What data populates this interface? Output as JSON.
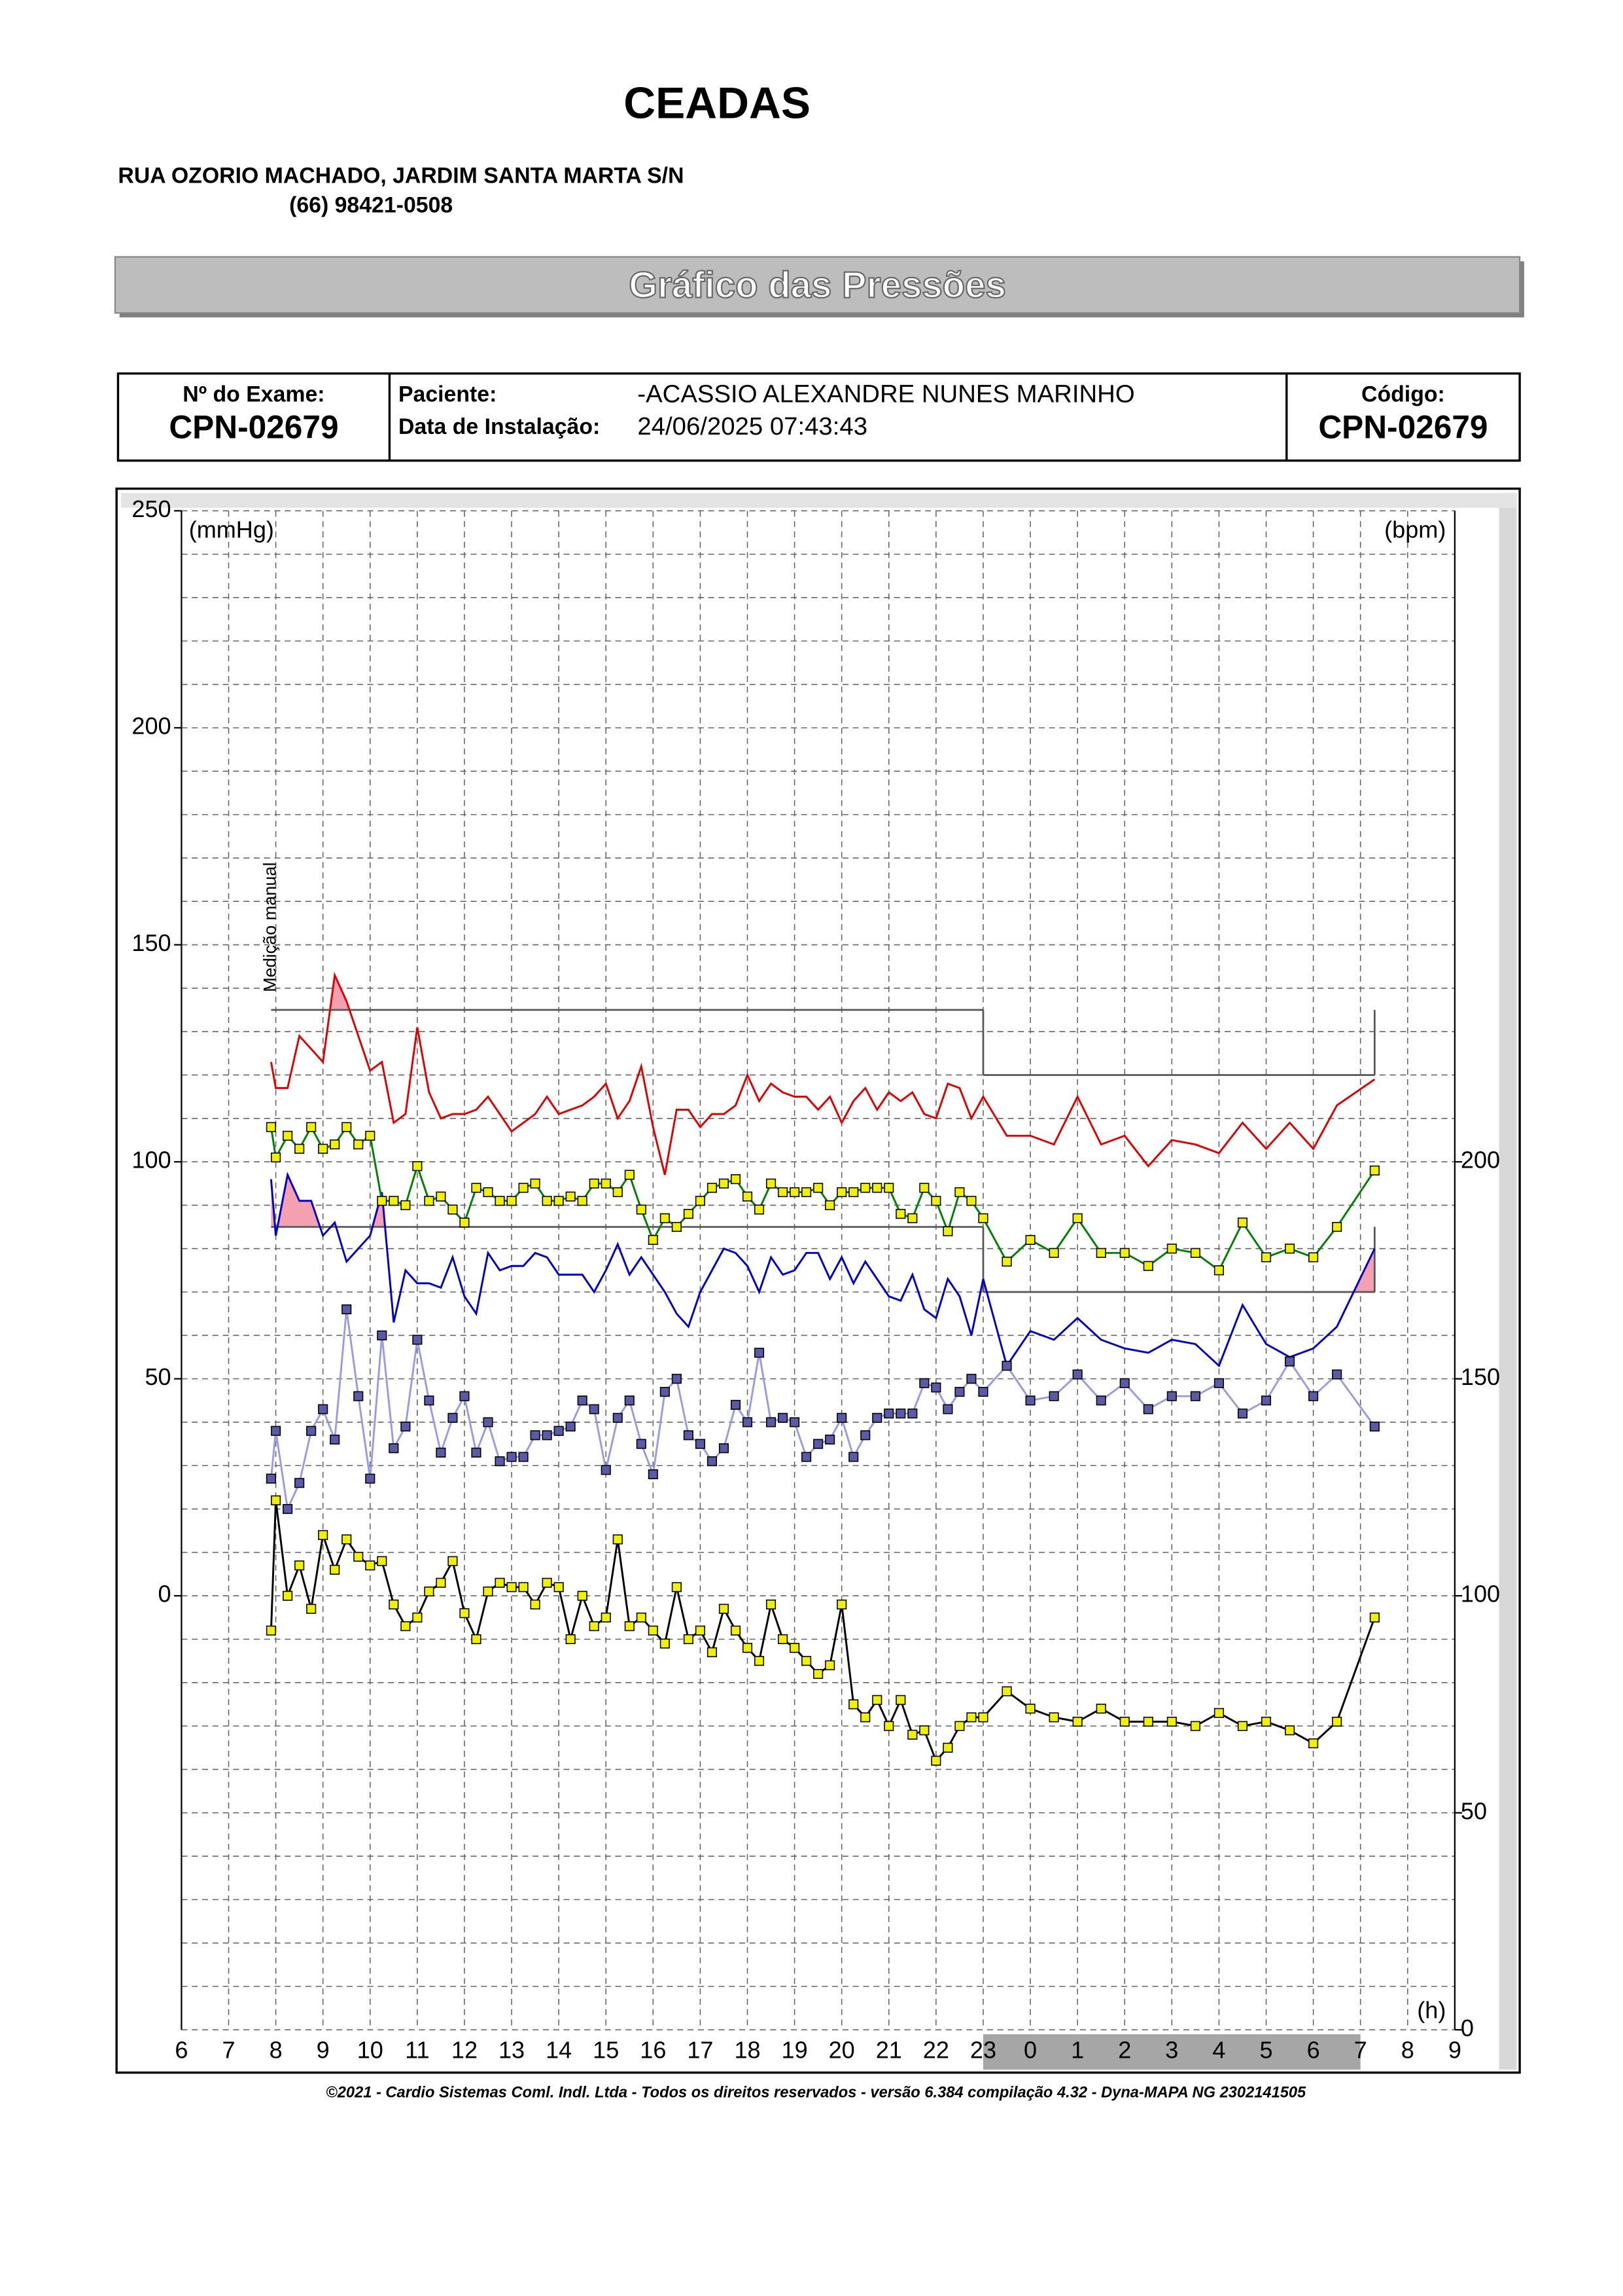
{
  "header": {
    "title": "CEADAS",
    "address": "RUA OZORIO MACHADO, JARDIM SANTA MARTA S/N",
    "phone": "(66) 98421-0508"
  },
  "banner": "Gráfico das Pressões",
  "exam": {
    "exam_label": "Nº do Exame:",
    "exam_number": "CPN-02679",
    "patient_label": "Paciente:",
    "patient_name": "-ACASSIO ALEXANDRE NUNES  MARINHO",
    "install_label": "Data de Instalação:",
    "install_date": "24/06/2025 07:43:43",
    "code_label": "Código:",
    "code": "CPN-02679"
  },
  "chart_data": {
    "type": "line",
    "y_label": "(mmHg)",
    "y2_label": "(bpm)",
    "x_label": "(h)",
    "annotation": {
      "x": 7.9,
      "text": "Medição manual"
    },
    "xlim": [
      6,
      33
    ],
    "xticks": [
      6,
      7,
      8,
      9,
      10,
      11,
      12,
      13,
      14,
      15,
      16,
      17,
      18,
      19,
      20,
      21,
      22,
      23,
      {
        "value": 24,
        "label": "0"
      },
      {
        "value": 25,
        "label": "1"
      },
      {
        "value": 26,
        "label": "2"
      },
      {
        "value": 27,
        "label": "3"
      },
      {
        "value": 28,
        "label": "4"
      },
      {
        "value": 29,
        "label": "5"
      },
      {
        "value": 30,
        "label": "6"
      },
      {
        "value": 31,
        "label": "7"
      },
      {
        "value": 32,
        "label": "8"
      },
      {
        "value": 33,
        "label": "9"
      }
    ],
    "ylim": [
      -100,
      250
    ],
    "yticks": [
      0,
      50,
      100,
      150,
      200,
      250
    ],
    "y2lim": [
      0,
      350
    ],
    "y2ticks": [
      0,
      50,
      100,
      150,
      200
    ],
    "grid": true,
    "ygrid_step": 10,
    "night_band": [
      23,
      31
    ],
    "limits": [
      {
        "start": 7.9,
        "end": 23,
        "systolic": 135,
        "diastolic": 85
      },
      {
        "start": 23,
        "end": 31.3,
        "systolic": 120,
        "diastolic": 70
      }
    ],
    "excess_color": "#f4a0b0",
    "x": [
      7.9,
      8,
      8.25,
      8.5,
      8.75,
      9,
      9.25,
      9.5,
      9.75,
      10,
      10.25,
      10.5,
      10.75,
      11,
      11.25,
      11.5,
      11.75,
      12,
      12.25,
      12.5,
      12.75,
      13,
      13.25,
      13.5,
      13.75,
      14,
      14.25,
      14.5,
      14.75,
      15,
      15.25,
      15.5,
      15.75,
      16,
      16.25,
      16.5,
      16.75,
      17,
      17.25,
      17.5,
      17.75,
      18,
      18.25,
      18.5,
      18.75,
      19,
      19.25,
      19.5,
      19.75,
      20,
      20.25,
      20.5,
      20.75,
      21,
      21.25,
      21.5,
      21.75,
      22,
      22.25,
      22.5,
      22.75,
      23,
      23.5,
      24,
      24.5,
      25,
      25.5,
      26,
      26.5,
      27,
      27.5,
      28,
      28.5,
      29,
      29.5,
      30,
      30.5,
      31.3
    ],
    "series": [
      {
        "color": "#e00000",
        "values": [
          123,
          117,
          117,
          129,
          126,
          123,
          143,
          137,
          129,
          121,
          123,
          109,
          111,
          131,
          116,
          110,
          111,
          111,
          112,
          115,
          111,
          107,
          109,
          111,
          115,
          111,
          112,
          113,
          115,
          118,
          110,
          114,
          122,
          108,
          97,
          112,
          112,
          108,
          111,
          111,
          113,
          120,
          114,
          118,
          116,
          115,
          115,
          112,
          115,
          109,
          114,
          117,
          112,
          116,
          114,
          116,
          111,
          110,
          118,
          117,
          110,
          115,
          106,
          106,
          104,
          115,
          104,
          106,
          99,
          105,
          104,
          102,
          109,
          103,
          109,
          103,
          113,
          119
        ]
      },
      {
        "color": "#0000cc",
        "values": [
          96,
          83,
          97,
          91,
          91,
          83,
          86,
          77,
          80,
          83,
          93,
          63,
          75,
          72,
          72,
          71,
          78,
          69,
          65,
          79,
          75,
          76,
          76,
          79,
          78,
          74,
          74,
          74,
          70,
          75,
          81,
          74,
          78,
          74,
          70,
          65,
          62,
          70,
          75,
          80,
          79,
          76,
          70,
          78,
          74,
          75,
          79,
          79,
          73,
          78,
          72,
          77,
          73,
          69,
          68,
          74,
          66,
          64,
          73,
          69,
          60,
          73,
          53,
          61,
          59,
          64,
          59,
          57,
          56,
          59,
          58,
          53,
          67,
          58,
          55,
          57,
          62,
          80
        ]
      },
      {
        "color": "#008000",
        "marker_color": "#f0f000",
        "values": [
          108,
          101,
          106,
          103,
          108,
          103,
          104,
          108,
          104,
          106,
          91,
          91,
          90,
          99,
          91,
          92,
          89,
          86,
          94,
          93,
          91,
          91,
          94,
          95,
          91,
          91,
          92,
          91,
          95,
          95,
          93,
          97,
          89,
          82,
          87,
          85,
          88,
          91,
          94,
          95,
          96,
          92,
          89,
          95,
          93,
          93,
          93,
          94,
          90,
          93,
          93,
          94,
          94,
          94,
          88,
          87,
          94,
          91,
          84,
          93,
          91,
          87,
          77,
          82,
          79,
          87,
          79,
          79,
          76,
          80,
          79,
          75,
          86,
          78,
          80,
          78,
          85,
          98
        ]
      },
      {
        "color": "#9a9ae6",
        "marker_color": "#5a5aa8",
        "values": [
          27,
          38,
          20,
          26,
          38,
          43,
          36,
          66,
          46,
          27,
          60,
          34,
          39,
          59,
          45,
          33,
          41,
          46,
          33,
          40,
          31,
          32,
          32,
          37,
          37,
          38,
          39,
          45,
          43,
          29,
          41,
          45,
          35,
          28,
          47,
          50,
          37,
          35,
          31,
          34,
          44,
          40,
          56,
          40,
          41,
          40,
          32,
          35,
          36,
          41,
          32,
          37,
          41,
          42,
          42,
          42,
          49,
          48,
          43,
          47,
          50,
          47,
          53,
          45,
          46,
          51,
          45,
          49,
          43,
          46,
          46,
          49,
          42,
          45,
          54,
          46,
          51,
          39
        ]
      },
      {
        "color": "#000000",
        "marker_color": "#f0f000",
        "axis": "y2",
        "values": [
          92,
          122,
          100,
          107,
          97,
          114,
          106,
          113,
          109,
          107,
          108,
          98,
          93,
          95,
          101,
          103,
          108,
          96,
          90,
          101,
          103,
          102,
          102,
          98,
          103,
          102,
          90,
          100,
          93,
          95,
          113,
          93,
          95,
          92,
          89,
          102,
          90,
          92,
          87,
          97,
          92,
          88,
          85,
          98,
          90,
          88,
          85,
          82,
          84,
          98,
          75,
          72,
          76,
          70,
          76,
          68,
          69,
          62,
          65,
          70,
          72,
          72,
          78,
          74,
          72,
          71,
          74,
          71,
          71,
          71,
          70,
          73,
          70,
          71,
          69,
          66,
          71,
          95
        ]
      }
    ]
  },
  "footer": "©2021 - Cardio Sistemas Coml. Indl. Ltda - Todos os direitos reservados - versão 6.384 compilação 4.32 - Dyna-MAPA NG 2302141505"
}
